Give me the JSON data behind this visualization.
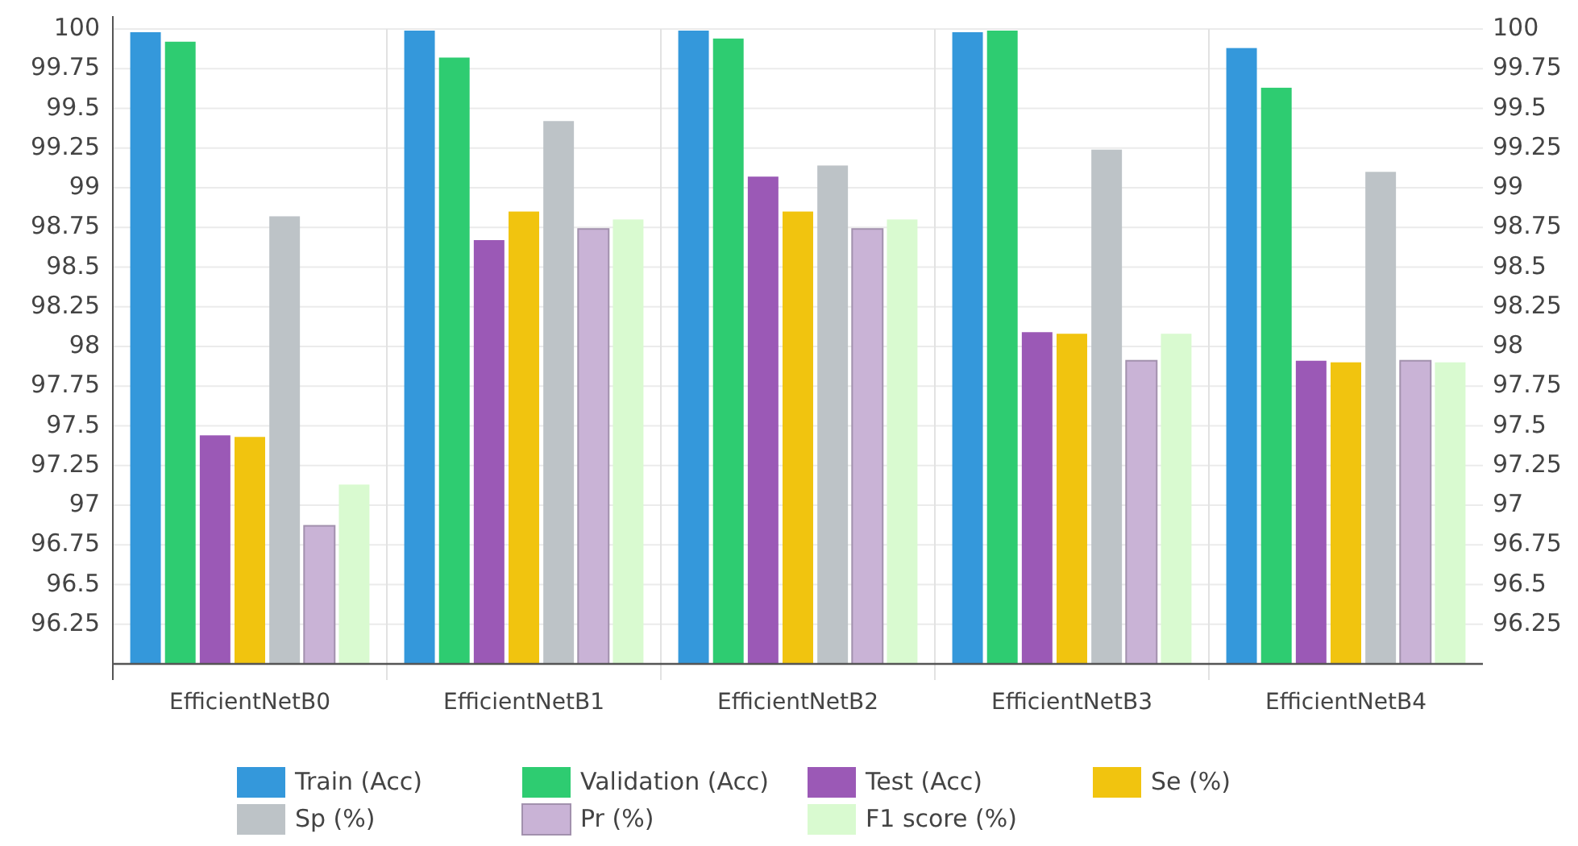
{
  "chart_data": {
    "type": "bar",
    "categories": [
      "EfficientNetB0",
      "EfficientNetB1",
      "EfficientNetB2",
      "EfficientNetB3",
      "EfficientNetB4"
    ],
    "series": [
      {
        "name": "Train (Acc)",
        "color": "#3498db",
        "values": [
          99.98,
          99.99,
          99.99,
          99.98,
          99.88
        ]
      },
      {
        "name": "Validation (Acc)",
        "color": "#2ecc71",
        "values": [
          99.92,
          99.82,
          99.94,
          99.99,
          99.63
        ]
      },
      {
        "name": "Test (Acc)",
        "color": "#9b59b6",
        "values": [
          97.44,
          98.67,
          99.07,
          98.09,
          97.91
        ]
      },
      {
        "name": "Se (%)",
        "color": "#f1c40f",
        "values": [
          97.43,
          98.85,
          98.85,
          98.08,
          97.9
        ]
      },
      {
        "name": "Sp (%)",
        "color": "#bdc3c7",
        "values": [
          98.82,
          99.42,
          99.14,
          99.24,
          99.1
        ]
      },
      {
        "name": "Pr (%)",
        "color": "#c9b3d6",
        "values": [
          96.87,
          98.74,
          98.74,
          97.91,
          97.91
        ]
      },
      {
        "name": "F1 score (%)",
        "color": "#d9fad0",
        "values": [
          97.13,
          98.8,
          98.8,
          98.08,
          97.9
        ]
      }
    ],
    "ylim": [
      96,
      100
    ],
    "yticks": [
      96.25,
      96.5,
      96.75,
      97,
      97.25,
      97.5,
      97.75,
      98,
      98.25,
      98.5,
      98.75,
      99,
      99.25,
      99.5,
      99.75,
      100
    ],
    "y2lim": [
      96,
      100
    ],
    "y2ticks": [
      96.25,
      96.5,
      96.75,
      97,
      97.25,
      97.5,
      97.75,
      98,
      98.25,
      98.5,
      98.75,
      99,
      99.25,
      99.5,
      99.75,
      100
    ],
    "grid": true,
    "legend": "bottom"
  }
}
